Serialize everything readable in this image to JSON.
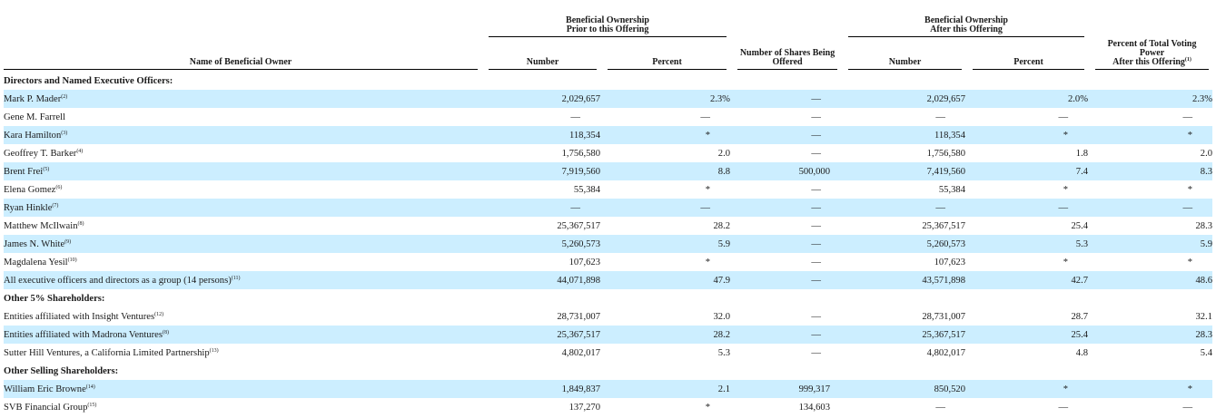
{
  "headers": {
    "name": "Name of Beneficial Owner",
    "prior_group": [
      "Beneficial Ownership",
      "Prior to this Offering"
    ],
    "after_group": [
      "Beneficial Ownership",
      "After this Offering"
    ],
    "number": "Number",
    "percent": "Percent",
    "offered": [
      "Number of Shares Being",
      "Offered"
    ],
    "voting": [
      "Percent of Total Voting Power",
      "After this Offering"
    ],
    "voting_note": "(1)"
  },
  "sections": [
    {
      "title": "Directors and Named Executive Officers:",
      "rows": [
        {
          "name": "Mark P. Mader",
          "note": "(2)",
          "prior_number": "2,029,657",
          "prior_percent": "2.3%",
          "offered": "—",
          "after_number": "2,029,657",
          "after_percent": "2.0%",
          "voting": "2.3%"
        },
        {
          "name": "Gene M. Farrell",
          "note": "",
          "prior_number": "—",
          "prior_percent": "—",
          "offered": "—",
          "after_number": "—",
          "after_percent": "—",
          "voting": "—"
        },
        {
          "name": "Kara Hamilton",
          "note": "(3)",
          "prior_number": "118,354",
          "prior_percent": "*",
          "offered": "—",
          "after_number": "118,354",
          "after_percent": "*",
          "voting": "*"
        },
        {
          "name": "Geoffrey T. Barker",
          "note": "(4)",
          "prior_number": "1,756,580",
          "prior_percent": "2.0",
          "offered": "—",
          "after_number": "1,756,580",
          "after_percent": "1.8",
          "voting": "2.0"
        },
        {
          "name": "Brent Frei",
          "note": "(5)",
          "prior_number": "7,919,560",
          "prior_percent": "8.8",
          "offered": "500,000",
          "after_number": "7,419,560",
          "after_percent": "7.4",
          "voting": "8.3"
        },
        {
          "name": "Elena Gomez",
          "note": "(6)",
          "prior_number": "55,384",
          "prior_percent": "*",
          "offered": "—",
          "after_number": "55,384",
          "after_percent": "*",
          "voting": "*"
        },
        {
          "name": "Ryan Hinkle",
          "note": "(7)",
          "prior_number": "—",
          "prior_percent": "—",
          "offered": "—",
          "after_number": "—",
          "after_percent": "—",
          "voting": "—"
        },
        {
          "name": "Matthew McIlwain",
          "note": "(8)",
          "prior_number": "25,367,517",
          "prior_percent": "28.2",
          "offered": "—",
          "after_number": "25,367,517",
          "after_percent": "25.4",
          "voting": "28.3"
        },
        {
          "name": "James N. White",
          "note": "(9)",
          "prior_number": "5,260,573",
          "prior_percent": "5.9",
          "offered": "—",
          "after_number": "5,260,573",
          "after_percent": "5.3",
          "voting": "5.9"
        },
        {
          "name": "Magdalena Yesil",
          "note": "(10)",
          "prior_number": "107,623",
          "prior_percent": "*",
          "offered": "—",
          "after_number": "107,623",
          "after_percent": "*",
          "voting": "*"
        },
        {
          "name": "All executive officers and directors as a group (14 persons)",
          "note": "(11)",
          "prior_number": "44,071,898",
          "prior_percent": "47.9",
          "offered": "—",
          "after_number": "43,571,898",
          "after_percent": "42.7",
          "voting": "48.6"
        }
      ]
    },
    {
      "title": "Other 5% Shareholders:",
      "rows": [
        {
          "name": "Entities affiliated with Insight Ventures",
          "note": "(12)",
          "prior_number": "28,731,007",
          "prior_percent": "32.0",
          "offered": "—",
          "after_number": "28,731,007",
          "after_percent": "28.7",
          "voting": "32.1"
        },
        {
          "name": "Entities affiliated with Madrona Ventures",
          "note": "(8)",
          "prior_number": "25,367,517",
          "prior_percent": "28.2",
          "offered": "—",
          "after_number": "25,367,517",
          "after_percent": "25.4",
          "voting": "28.3"
        },
        {
          "name": "Sutter Hill Ventures, a California Limited Partnership",
          "note": "(13)",
          "prior_number": "4,802,017",
          "prior_percent": "5.3",
          "offered": "—",
          "after_number": "4,802,017",
          "after_percent": "4.8",
          "voting": "5.4"
        }
      ]
    },
    {
      "title": "Other Selling Shareholders:",
      "rows": [
        {
          "name": "William Eric Browne",
          "note": "(14)",
          "prior_number": "1,849,837",
          "prior_percent": "2.1",
          "offered": "999,317",
          "after_number": "850,520",
          "after_percent": "*",
          "voting": "*"
        },
        {
          "name": "SVB Financial Group",
          "note": "(15)",
          "prior_number": "137,270",
          "prior_percent": "*",
          "offered": "134,603",
          "after_number": "—",
          "after_percent": "—",
          "voting": "—"
        }
      ]
    }
  ],
  "colors": {
    "shade": "#cceeff",
    "text": "#1a1a1a"
  }
}
